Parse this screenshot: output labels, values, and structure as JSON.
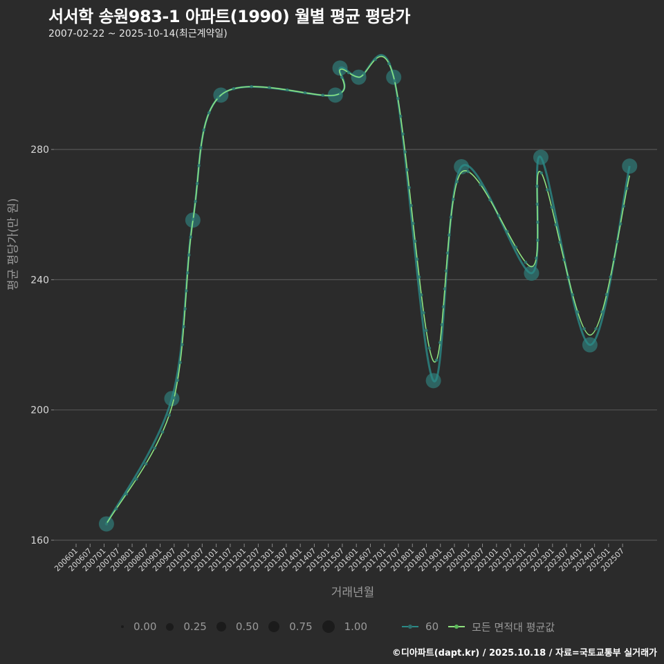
{
  "header": {
    "title": "서서학 송원983-1 아파트(1990) 월별 평균 평당가",
    "subtitle": "2007-02-22 ~ 2025-10-14(최근계약일)"
  },
  "axes": {
    "ylabel": "평균 평당가(만 원)",
    "xlabel": "거래년월",
    "yticks": [
      "160",
      "200",
      "240",
      "280"
    ],
    "xticks": [
      "200601",
      "200607",
      "200701",
      "200707",
      "200801",
      "200807",
      "200901",
      "200907",
      "201001",
      "201007",
      "201101",
      "201107",
      "201201",
      "201207",
      "201301",
      "201307",
      "201401",
      "201407",
      "201501",
      "201507",
      "201601",
      "201607",
      "201701",
      "201707",
      "201801",
      "201807",
      "201901",
      "201907",
      "202001",
      "202007",
      "202101",
      "202107",
      "202201",
      "202207",
      "202301",
      "202307",
      "202401",
      "202407",
      "202501",
      "202507"
    ]
  },
  "legend": {
    "size_labels": [
      "0.00",
      "0.25",
      "0.50",
      "0.75",
      "1.00"
    ],
    "series_60": "60",
    "series_avg": "모든 면적대 평균값"
  },
  "footer": "©디아파트(dapt.kr) / 2025.10.18 / 자료=국토교통부 실거래가",
  "colors": {
    "background": "#2b2b2b",
    "grid": "#555555",
    "series_60": "#2a8a87",
    "avg_line": "#8fe37f",
    "point_fill": "#2f6e6c"
  },
  "chart_data": {
    "type": "line",
    "title": "서서학 송원983-1 아파트(1990) 월별 평균 평당가",
    "subtitle": "2007-02-22 ~ 2025-10-14(최근계약일)",
    "xlabel": "거래년월",
    "ylabel": "평균 평당가(만 원)",
    "ylim": [
      158,
      310
    ],
    "grid": true,
    "legend_position": "bottom",
    "series": [
      {
        "name": "60",
        "points": [
          {
            "x": "200702",
            "y": 165
          },
          {
            "x": "200906",
            "y": 203.5
          },
          {
            "x": "201003",
            "y": 258.3
          },
          {
            "x": "201103",
            "y": 296.7
          },
          {
            "x": "201504",
            "y": 296.7
          },
          {
            "x": "201506",
            "y": 305
          },
          {
            "x": "201602",
            "y": 302.2
          },
          {
            "x": "201705",
            "y": 302.2
          },
          {
            "x": "201810",
            "y": 209
          },
          {
            "x": "201910",
            "y": 274.7
          },
          {
            "x": "202204",
            "y": 242
          },
          {
            "x": "202208",
            "y": 277.6
          },
          {
            "x": "202405",
            "y": 220
          },
          {
            "x": "202510",
            "y": 274.9
          }
        ]
      },
      {
        "name": "모든 면적대 평균값",
        "points": [
          {
            "x": "200702",
            "y": 165
          },
          {
            "x": "200906",
            "y": 201
          },
          {
            "x": "201003",
            "y": 258
          },
          {
            "x": "201103",
            "y": 296.7
          },
          {
            "x": "201504",
            "y": 296.7
          },
          {
            "x": "201506",
            "y": 304.5
          },
          {
            "x": "201602",
            "y": 302.2
          },
          {
            "x": "201705",
            "y": 302.2
          },
          {
            "x": "201810",
            "y": 215
          },
          {
            "x": "201910",
            "y": 273
          },
          {
            "x": "202204",
            "y": 244
          },
          {
            "x": "202208",
            "y": 273
          },
          {
            "x": "202405",
            "y": 223
          },
          {
            "x": "202510",
            "y": 272
          }
        ]
      }
    ]
  }
}
